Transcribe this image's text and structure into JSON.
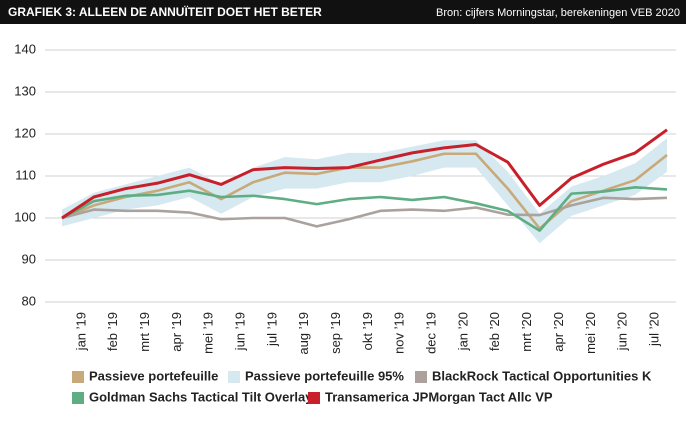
{
  "header": {
    "title": "GRAFIEK 3: ALLEEN DE ANNUÏTEIT DOET HET BETER",
    "source": "Bron: cijfers Morningstar, berekeningen VEB 2020"
  },
  "chart_data": {
    "type": "line",
    "categories": [
      null,
      "jan ’19",
      "feb ’19",
      "mrt ’19",
      "apr ’19",
      "mei ’19",
      "jun ’19",
      "jul ’19",
      "aug ’19",
      "sep ’19",
      "okt ’19",
      "nov ’19",
      "dec ’19",
      "jan ’20",
      "feb ’20",
      "mrt ’20",
      "apr ’20",
      "mei ’20",
      "jun ’20",
      "jul ’20"
    ],
    "ylim": [
      80,
      140
    ],
    "yticks": [
      80,
      90,
      100,
      110,
      120,
      130,
      140
    ],
    "grid": true,
    "band": {
      "name": "Passieve portefeuille 95%",
      "color": "#d6e9f0",
      "upper": [
        102,
        106,
        108,
        110,
        112,
        108,
        112,
        114.5,
        114,
        115.5,
        115.5,
        117,
        118.5,
        118.5,
        111,
        101,
        107.5,
        110,
        113,
        119
      ],
      "lower": [
        98,
        100,
        102,
        103,
        105,
        101,
        105,
        107,
        107,
        108.5,
        108.5,
        110,
        112,
        112,
        103,
        94,
        100.5,
        103,
        105.5,
        111
      ]
    },
    "series": [
      {
        "name": "Passieve portefeuille",
        "color": "#c9a97a",
        "values": [
          100,
          103,
          105,
          106.5,
          108.5,
          104.5,
          108.5,
          110.8,
          110.5,
          112,
          112,
          113.5,
          115.3,
          115.3,
          107,
          97.5,
          104,
          106.5,
          109,
          115
        ]
      },
      {
        "name": "BlackRock Tactical Opportunities K",
        "color": "#aba29d",
        "values": [
          100,
          102,
          101.7,
          101.7,
          101.3,
          99.7,
          100,
          100,
          98,
          99.7,
          101.7,
          102,
          101.7,
          102.5,
          100.8,
          100.7,
          103,
          104.8,
          104.5,
          104.8
        ]
      },
      {
        "name": "Goldman Sachs Tactical Tilt Overlay",
        "color": "#5fae83",
        "values": [
          100,
          104,
          105.3,
          105.5,
          106.5,
          105,
          105.3,
          104.5,
          103.3,
          104.5,
          105,
          104.3,
          105,
          103.5,
          101.7,
          97,
          105.8,
          106.3,
          107.3,
          106.8
        ]
      },
      {
        "name": "Transamerica JPMorgan Tact Allc VP",
        "color": "#c8202b",
        "values": [
          100,
          105,
          107,
          108.3,
          110.3,
          108,
          111.5,
          112,
          111.8,
          112,
          113.8,
          115.5,
          116.7,
          117.5,
          113.3,
          103,
          109.5,
          112.8,
          115.5,
          121
        ]
      }
    ]
  }
}
